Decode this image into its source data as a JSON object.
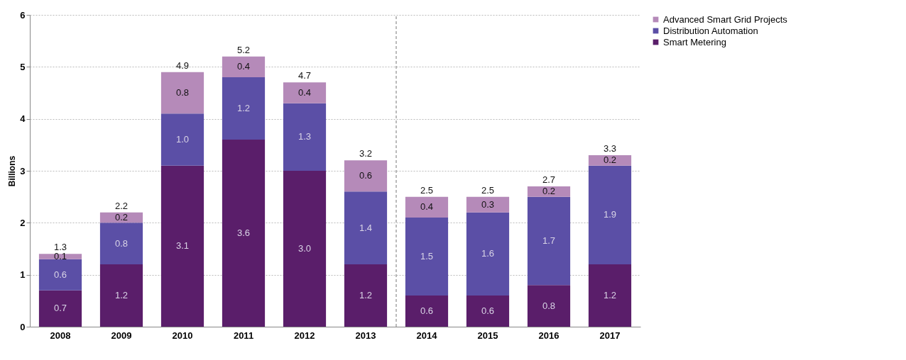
{
  "chart_data": {
    "type": "bar",
    "stacked": true,
    "ylabel": "Billions",
    "categories": [
      "2008",
      "2009",
      "2010",
      "2011",
      "2012",
      "2013",
      "2014",
      "2015",
      "2016",
      "2017"
    ],
    "series": [
      {
        "name": "Smart Metering",
        "color": "#5a1e6a",
        "values": [
          0.7,
          1.2,
          3.1,
          3.6,
          3.0,
          1.2,
          0.6,
          0.6,
          0.8,
          1.2
        ],
        "value_labels": [
          "0.7",
          "1.2",
          "3.1",
          "3.6",
          "3.0",
          "1.2",
          "0.6",
          "0.6",
          "0.8",
          "1.2"
        ]
      },
      {
        "name": "Distribution Automation",
        "color": "#5b4fa6",
        "values": [
          0.6,
          0.8,
          1.0,
          1.2,
          1.3,
          1.4,
          1.5,
          1.6,
          1.7,
          1.9
        ],
        "value_labels": [
          "0.6",
          "0.8",
          "1.0",
          "1.2",
          "1.3",
          "1.4",
          "1.5",
          "1.6",
          "1.7",
          "1.9"
        ]
      },
      {
        "name": "Advanced Smart Grid Projects",
        "color": "#b58ab9",
        "values": [
          0.1,
          0.2,
          0.8,
          0.4,
          0.4,
          0.6,
          0.4,
          0.3,
          0.2,
          0.2
        ],
        "value_labels": [
          "0.1",
          "0.2",
          "0.8",
          "0.4",
          "0.4",
          "0.6",
          "0.4",
          "0.3",
          "0.2",
          "0.2"
        ]
      }
    ],
    "totals": [
      "1.3",
      "2.2",
      "4.9",
      "5.2",
      "4.7",
      "3.2",
      "2.5",
      "2.5",
      "2.7",
      "3.3"
    ],
    "ylim": [
      0,
      6
    ],
    "yticks": [
      0,
      1,
      2,
      3,
      4,
      5,
      6
    ],
    "grid": "y",
    "legend": "right",
    "ref_lines": [
      {
        "axis": "x",
        "value": "2014",
        "line_style": "dashed",
        "color": "#777777"
      }
    ]
  }
}
